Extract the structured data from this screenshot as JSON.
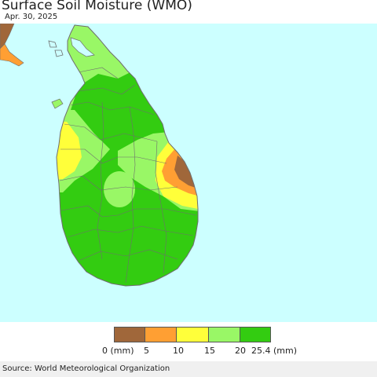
{
  "header": {
    "title": "Surface Soil Moisture (WMO)",
    "date": "Apr. 30, 2025"
  },
  "map": {
    "region": "Sri Lanka",
    "ocean_color": "#ccffff",
    "border_color": "#6e6e6e",
    "moisture_classes_present": [
      "0-5",
      "5-10",
      "10-15",
      "15-20",
      "20-25.4"
    ]
  },
  "legend": {
    "colors": [
      "#a0673a",
      "#ff9f33",
      "#ffff3a",
      "#99f766",
      "#33cc11"
    ],
    "ticks": [
      "0 (mm)",
      "5",
      "10",
      "15",
      "20",
      "25.4 (mm)"
    ]
  },
  "footer": {
    "source": "Source: World Meteorological Organization"
  }
}
